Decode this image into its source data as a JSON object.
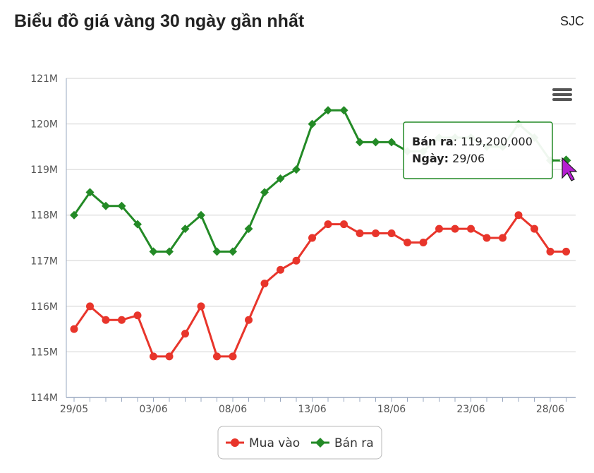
{
  "header": {
    "title": "Biểu đồ giá vàng 30 ngày gần nhất",
    "brand": "SJC"
  },
  "colors": {
    "buy": "#e8352b",
    "sell": "#238a26",
    "grid": "#d0d0d0",
    "axis": "#9aa8c0"
  },
  "icons": {
    "menu": "hamburger-menu-icon",
    "cursor": "pointer-arrow-icon"
  },
  "chart_data": {
    "type": "line",
    "title": "",
    "xlabel": "",
    "ylabel": "",
    "ylim": [
      114,
      121
    ],
    "y_unit": "M",
    "yticks": [
      "114M",
      "115M",
      "116M",
      "117M",
      "118M",
      "119M",
      "120M",
      "121M"
    ],
    "categories": [
      "29/05",
      "30/05",
      "31/05",
      "01/06",
      "02/06",
      "03/06",
      "04/06",
      "05/06",
      "06/06",
      "07/06",
      "08/06",
      "09/06",
      "10/06",
      "11/06",
      "12/06",
      "13/06",
      "14/06",
      "15/06",
      "16/06",
      "17/06",
      "18/06",
      "19/06",
      "20/06",
      "21/06",
      "22/06",
      "23/06",
      "24/06",
      "25/06",
      "26/06",
      "27/06",
      "28/06",
      "29/06"
    ],
    "xtick_labels": [
      "29/05",
      "03/06",
      "08/06",
      "13/06",
      "18/06",
      "23/06",
      "28/06"
    ],
    "series": [
      {
        "name": "Mua vào",
        "color": "#e8352b",
        "marker": "circle",
        "values": [
          115.5,
          116.0,
          115.7,
          115.7,
          115.8,
          114.9,
          114.9,
          115.4,
          116.0,
          114.9,
          114.9,
          115.7,
          116.5,
          116.8,
          117.0,
          117.5,
          117.8,
          117.8,
          117.6,
          117.6,
          117.6,
          117.4,
          117.4,
          117.7,
          117.7,
          117.7,
          117.5,
          117.5,
          118.0,
          117.7,
          117.2,
          117.2
        ]
      },
      {
        "name": "Bán ra",
        "color": "#238a26",
        "marker": "diamond",
        "values": [
          118.0,
          118.5,
          118.2,
          118.2,
          117.8,
          117.2,
          117.2,
          117.7,
          118.0,
          117.2,
          117.2,
          117.7,
          118.5,
          118.8,
          119.0,
          120.0,
          120.3,
          120.3,
          119.6,
          119.6,
          119.6,
          119.4,
          119.4,
          119.7,
          119.7,
          119.7,
          119.5,
          119.5,
          120.0,
          119.7,
          119.2,
          119.2
        ]
      }
    ],
    "legend": {
      "position": "bottom-center",
      "items": [
        "Mua vào",
        "Bán ra"
      ]
    },
    "grid": true,
    "tooltip": {
      "series_label": "Bán ra",
      "value_text": "119,200,000",
      "date_label": "Ngày",
      "date_value": "29/06"
    }
  }
}
